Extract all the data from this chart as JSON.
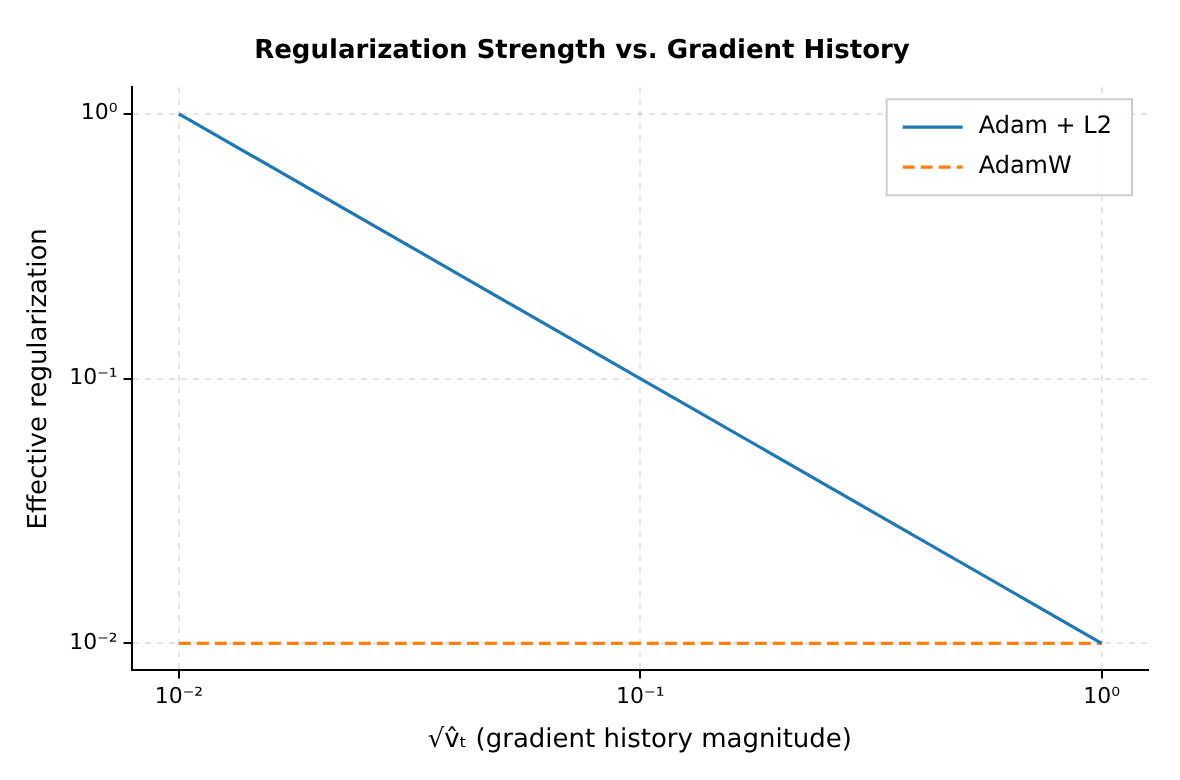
{
  "chart_data": {
    "type": "line",
    "title": "Regularization Strength vs. Gradient History",
    "xlabel": "√v̂ₜ (gradient history magnitude)",
    "ylabel": "Effective regularization",
    "series": [
      {
        "name": "Adam + L2",
        "color": "#1f77b4",
        "x": [
          0.01,
          0.1,
          1
        ],
        "values": [
          1,
          0.1,
          0.01
        ],
        "line_style": "solid"
      },
      {
        "name": "AdamW",
        "color": "#ff7f0e",
        "x": [
          0.01,
          0.1,
          1
        ],
        "values": [
          0.01,
          0.01,
          0.01
        ],
        "line_style": "dashed"
      }
    ],
    "log": "xy",
    "xlim": [
      0.0079,
      1.26
    ],
    "ylim": [
      0.0079,
      1.26
    ],
    "xticks": [
      {
        "value": 0.01,
        "label": "10⁻²"
      },
      {
        "value": 0.1,
        "label": "10⁻¹"
      },
      {
        "value": 1,
        "label": "10⁰"
      }
    ],
    "yticks": [
      {
        "value": 0.01,
        "label": "10⁻²"
      },
      {
        "value": 0.1,
        "label": "10⁻¹"
      },
      {
        "value": 1,
        "label": "10⁰"
      }
    ],
    "grid": true,
    "legend": "top right",
    "marker": "none"
  }
}
